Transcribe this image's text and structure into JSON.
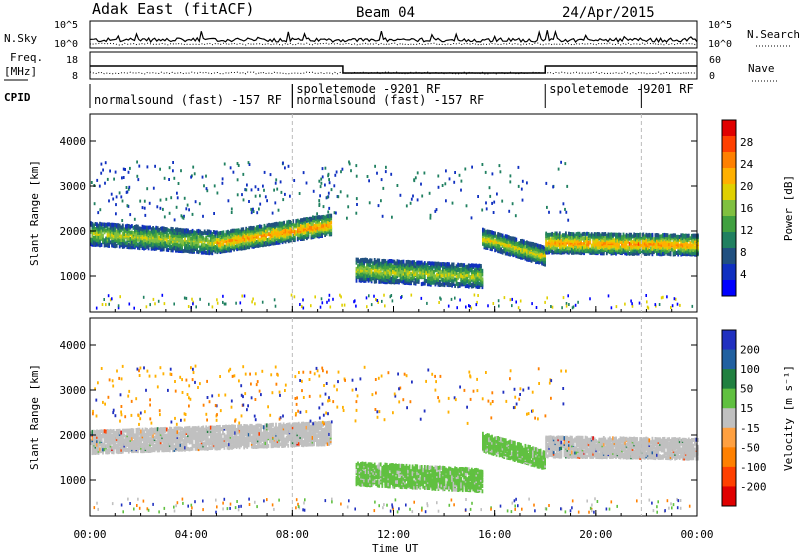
{
  "header": {
    "station": "Adak East (fitACF)",
    "beam": "Beam 04",
    "date": "24/Apr/2015"
  },
  "strip_labels": {
    "nsky": "N.Sky",
    "nsearch": "N.Search",
    "freq_top": "Freq.",
    "freq_unit": "[MHz]",
    "nave": "Nave",
    "cpid": "CPID",
    "nsky_ticks": [
      "10^5",
      "10^0"
    ],
    "nsearch_ticks": [
      "10^5",
      "10^0"
    ],
    "freq_ticks": [
      "18",
      "8"
    ],
    "nave_ticks": [
      "60",
      "0"
    ]
  },
  "cpid_segments": [
    {
      "label": "normalsound (fast) -157 RF",
      "start_h": 0.0,
      "end_h": 8.0,
      "row": 1
    },
    {
      "label": "spoletemode -9201 RF",
      "start_h": 8.0,
      "end_h": 10.0,
      "row": 0
    },
    {
      "label": "normalsound (fast) -157 RF",
      "start_h": 8.0,
      "end_h": 18.0,
      "row": 1
    },
    {
      "label": "spoletemode -9201 RF",
      "start_h": 18.0,
      "end_h": 21.8,
      "row": 0
    }
  ],
  "colorbars": {
    "power": {
      "label": "Power [dB]",
      "ticks": [
        "28",
        "24",
        "20",
        "16",
        "12",
        "8",
        "4"
      ],
      "colors": [
        "#e00000",
        "#ff4000",
        "#ff8000",
        "#ffb000",
        "#e0d000",
        "#80c040",
        "#40a040",
        "#208060",
        "#205080",
        "#1030c0",
        "#0000ff"
      ]
    },
    "velocity": {
      "label": "Velocity [m s⁻¹]",
      "ticks": [
        "200",
        "100",
        "50",
        "15",
        "-15",
        "-50",
        "-100",
        "-200"
      ],
      "colors": [
        "#2030c0",
        "#2060a0",
        "#208040",
        "#60c040",
        "#c0c0c0",
        "#ffa040",
        "#ff8000",
        "#ff4000",
        "#e00000"
      ]
    }
  },
  "chart_data": [
    {
      "type": "heatmap",
      "title": "Power",
      "ylabel": "Slant Range [km]",
      "yticks": [
        "1000",
        "2000",
        "3000",
        "4000"
      ],
      "ylim": [
        200,
        4600
      ],
      "xlim_hours": [
        0,
        24
      ],
      "xticks": [
        "00:00",
        "04:00",
        "08:00",
        "12:00",
        "16:00",
        "20:00",
        "00:00"
      ],
      "xlabel": "Time UT",
      "bands": [
        {
          "t0": 0,
          "t1": 5,
          "r_center": [
            1900,
            1700
          ],
          "width_km": 500,
          "peak_db": 16
        },
        {
          "t0": 5,
          "t1": 9.5,
          "r_center": [
            1700,
            2100
          ],
          "width_km": 450,
          "peak_db": 22
        },
        {
          "t0": 10.5,
          "t1": 15.5,
          "r_center": [
            1100,
            950
          ],
          "width_km": 500,
          "peak_db": 16
        },
        {
          "t0": 15.5,
          "t1": 18,
          "r_center": [
            1800,
            1400
          ],
          "width_km": 400,
          "peak_db": 18
        },
        {
          "t0": 18,
          "t1": 24,
          "r_center": [
            1700,
            1650
          ],
          "width_km": 450,
          "peak_db": 22
        }
      ]
    },
    {
      "type": "heatmap",
      "title": "Velocity",
      "ylabel": "Slant Range [km]",
      "yticks": [
        "1000",
        "2000",
        "3000",
        "4000"
      ],
      "ylim": [
        200,
        4600
      ],
      "xlim_hours": [
        0,
        24
      ],
      "xticks": [
        "00:00",
        "04:00",
        "08:00",
        "12:00",
        "16:00",
        "20:00",
        "00:00"
      ],
      "xlabel": "Time UT",
      "bands": [
        {
          "t0": 0,
          "t1": 9.5,
          "r_center": [
            1800,
            2000
          ],
          "width_km": 500,
          "vel": 0
        },
        {
          "t0": 10.5,
          "t1": 15.5,
          "r_center": [
            1100,
            950
          ],
          "width_km": 500,
          "vel": 40
        },
        {
          "t0": 15.5,
          "t1": 18,
          "r_center": [
            1800,
            1400
          ],
          "width_km": 400,
          "vel": 40
        },
        {
          "t0": 18,
          "t1": 24,
          "r_center": [
            1700,
            1650
          ],
          "width_km": 450,
          "vel": 0
        }
      ]
    }
  ]
}
